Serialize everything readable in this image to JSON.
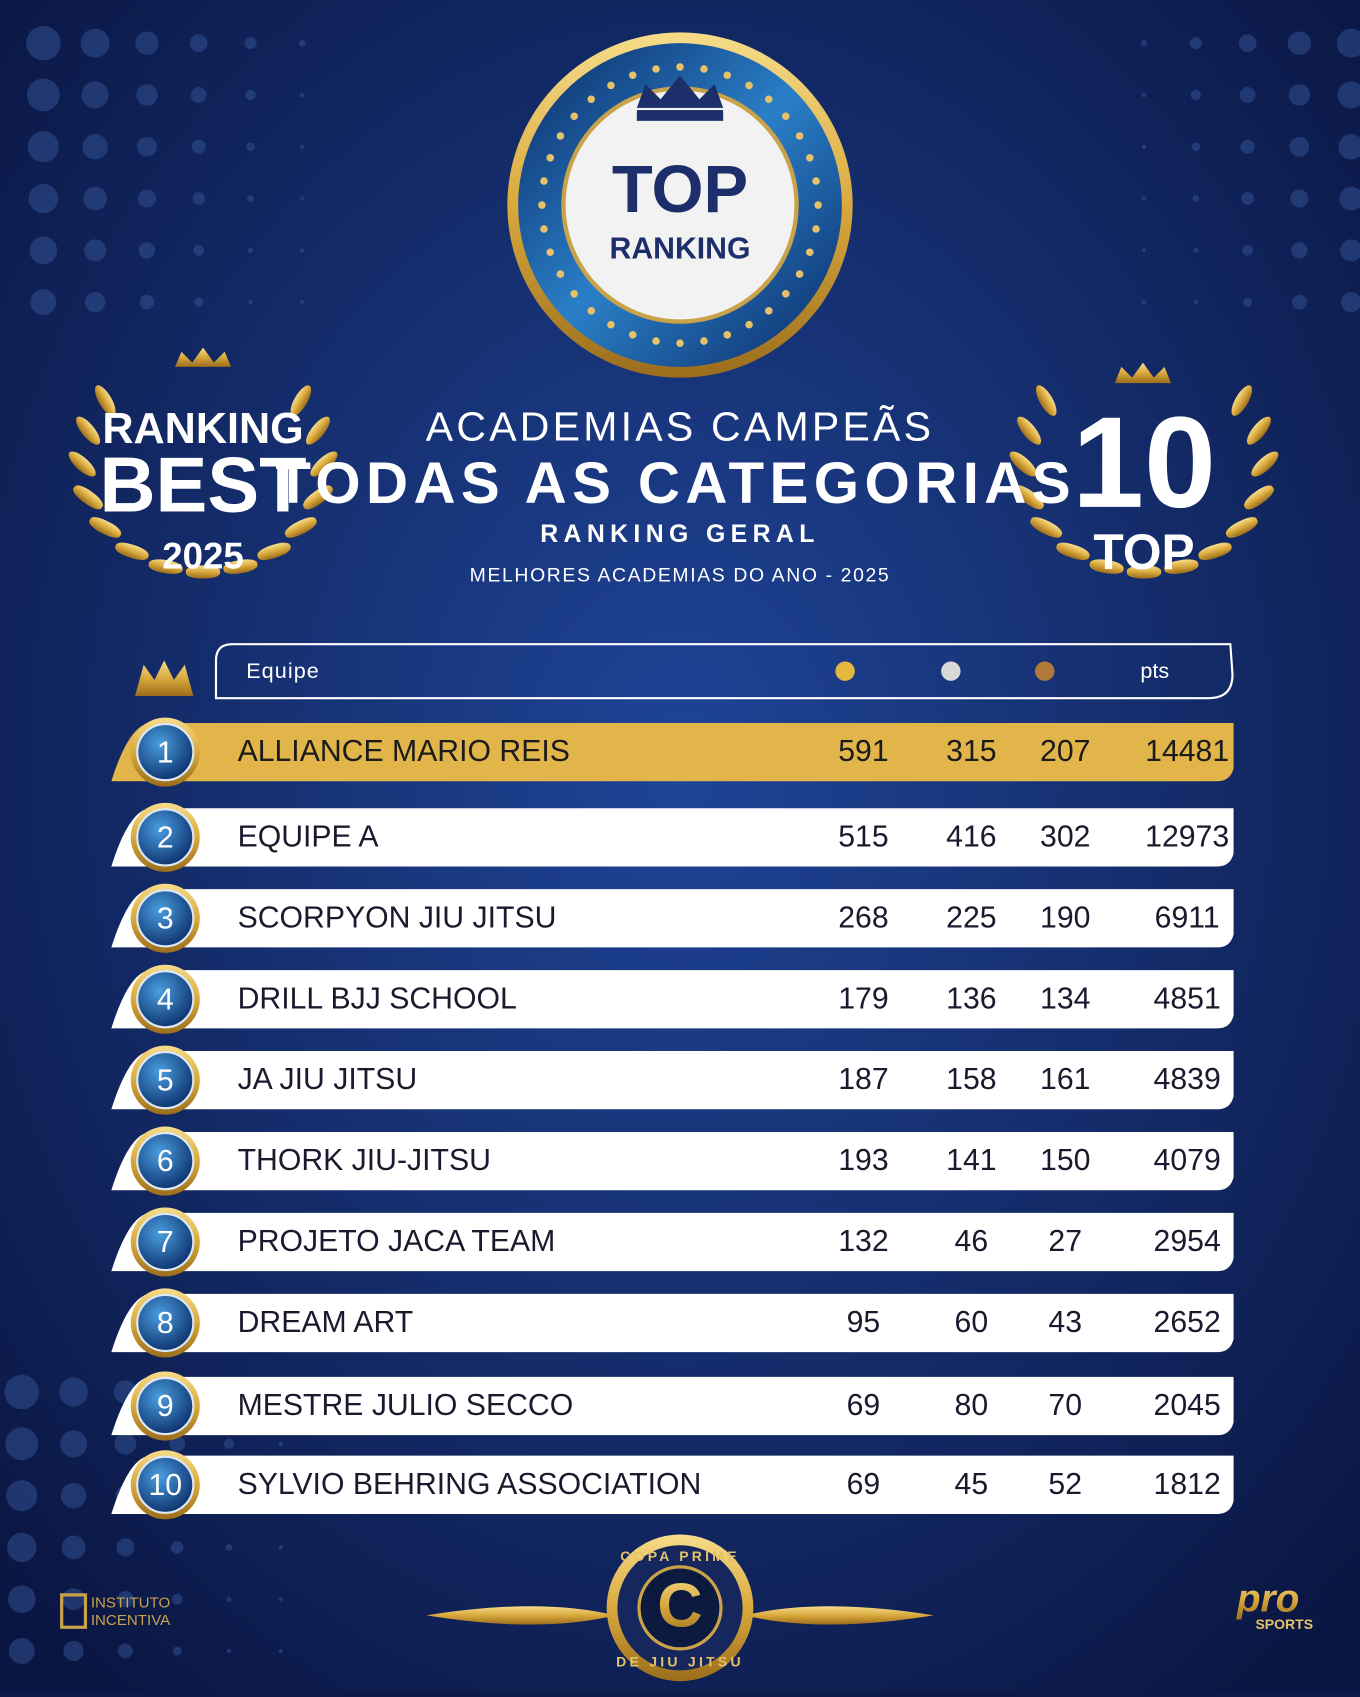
{
  "badge": {
    "top": "TOP",
    "ranking": "RANKING"
  },
  "left_laurel": {
    "line1": "RANKING",
    "line2": "BEST",
    "year": "2025"
  },
  "right_laurel": {
    "number": "10",
    "word": "TOP"
  },
  "heading": {
    "line1": "ACADEMIAS CAMPEÃS",
    "title": "TODAS AS CATEGORIAS",
    "subtitle": "RANKING GERAL",
    "caption": "MELHORES ACADEMIAS DO ANO - 2025"
  },
  "table": {
    "header": {
      "team": "Equipe",
      "points": "pts"
    },
    "rows": [
      {
        "rank": 1,
        "team": "ALLIANCE MARIO REIS",
        "gold": 591,
        "silver": 315,
        "bronze": 207,
        "points": 14481
      },
      {
        "rank": 2,
        "team": "EQUIPE A",
        "gold": 515,
        "silver": 416,
        "bronze": 302,
        "points": 12973
      },
      {
        "rank": 3,
        "team": "SCORPYON JIU JITSU",
        "gold": 268,
        "silver": 225,
        "bronze": 190,
        "points": 6911
      },
      {
        "rank": 4,
        "team": "DRILL BJJ SCHOOL",
        "gold": 179,
        "silver": 136,
        "bronze": 134,
        "points": 4851
      },
      {
        "rank": 5,
        "team": "JA JIU JITSU",
        "gold": 187,
        "silver": 158,
        "bronze": 161,
        "points": 4839
      },
      {
        "rank": 6,
        "team": "THORK JIU-JITSU",
        "gold": 193,
        "silver": 141,
        "bronze": 150,
        "points": 4079
      },
      {
        "rank": 7,
        "team": "PROJETO JACA TEAM",
        "gold": 132,
        "silver": 46,
        "bronze": 27,
        "points": 2954
      },
      {
        "rank": 8,
        "team": "DREAM ART",
        "gold": 95,
        "silver": 60,
        "bronze": 43,
        "points": 2652
      },
      {
        "rank": 9,
        "team": "MESTRE JULIO SECCO",
        "gold": 69,
        "silver": 80,
        "bronze": 70,
        "points": 2045
      },
      {
        "rank": 10,
        "team": "SYLVIO BEHRING ASSOCIATION",
        "gold": 69,
        "silver": 45,
        "bronze": 52,
        "points": 1812
      }
    ]
  },
  "footer": {
    "left_logo": {
      "line1": "INSTITUTO",
      "line2": "INCENTIVA"
    },
    "center_logo": {
      "top": "COPA PRIME",
      "letter": "C",
      "bottom": "DE JIU JITSU"
    },
    "right_logo": {
      "brand": "pro",
      "sub": "SPORTS"
    }
  }
}
